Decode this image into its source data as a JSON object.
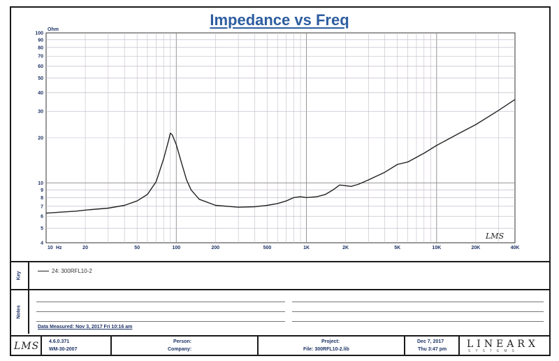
{
  "title": "Impedance vs Freq",
  "chart_data": {
    "type": "line",
    "title": "Impedance vs Freq",
    "ylabel": "Ohm",
    "xlabel": "Hz",
    "x_scale": "log",
    "y_scale": "log",
    "xlim": [
      10,
      40000
    ],
    "ylim": [
      4,
      100
    ],
    "grid": true,
    "y_ticks": [
      {
        "v": 100,
        "label": "100"
      },
      {
        "v": 90,
        "label": "90"
      },
      {
        "v": 80,
        "label": "80"
      },
      {
        "v": 70,
        "label": "70"
      },
      {
        "v": 60,
        "label": "60"
      },
      {
        "v": 50,
        "label": "50"
      },
      {
        "v": 40,
        "label": "40"
      },
      {
        "v": 30,
        "label": "30"
      },
      {
        "v": 20,
        "label": "20"
      },
      {
        "v": 10,
        "label": "10"
      },
      {
        "v": 9,
        "label": "9"
      },
      {
        "v": 8,
        "label": "8"
      },
      {
        "v": 7,
        "label": "7"
      },
      {
        "v": 6,
        "label": "6"
      },
      {
        "v": 5,
        "label": "5"
      },
      {
        "v": 4,
        "label": "4"
      }
    ],
    "x_ticks": [
      {
        "v": 10,
        "label": "10"
      },
      {
        "v": 20,
        "label": "20"
      },
      {
        "v": 50,
        "label": "50"
      },
      {
        "v": 100,
        "label": "100"
      },
      {
        "v": 200,
        "label": "200"
      },
      {
        "v": 500,
        "label": "500"
      },
      {
        "v": 1000,
        "label": "1K"
      },
      {
        "v": 2000,
        "label": "2K"
      },
      {
        "v": 5000,
        "label": "5K"
      },
      {
        "v": 10000,
        "label": "10K"
      },
      {
        "v": 20000,
        "label": "20K"
      },
      {
        "v": 40000,
        "label": "40K"
      }
    ],
    "series": [
      {
        "name": "24: 300RFL10-2",
        "color": "#222222",
        "points": [
          [
            10,
            6.3
          ],
          [
            13,
            6.4
          ],
          [
            17,
            6.5
          ],
          [
            20,
            6.6
          ],
          [
            30,
            6.8
          ],
          [
            40,
            7.1
          ],
          [
            50,
            7.6
          ],
          [
            60,
            8.4
          ],
          [
            70,
            10.2
          ],
          [
            80,
            14.5
          ],
          [
            87,
            19.0
          ],
          [
            90,
            21.5
          ],
          [
            93,
            21.0
          ],
          [
            100,
            18.0
          ],
          [
            110,
            13.5
          ],
          [
            120,
            10.5
          ],
          [
            130,
            9.0
          ],
          [
            150,
            7.8
          ],
          [
            200,
            7.1
          ],
          [
            300,
            6.9
          ],
          [
            400,
            6.95
          ],
          [
            500,
            7.1
          ],
          [
            600,
            7.3
          ],
          [
            700,
            7.6
          ],
          [
            800,
            8.0
          ],
          [
            900,
            8.1
          ],
          [
            1000,
            8.0
          ],
          [
            1200,
            8.1
          ],
          [
            1400,
            8.4
          ],
          [
            1600,
            9.0
          ],
          [
            1800,
            9.7
          ],
          [
            2000,
            9.6
          ],
          [
            2200,
            9.5
          ],
          [
            2500,
            9.8
          ],
          [
            3000,
            10.5
          ],
          [
            4000,
            11.8
          ],
          [
            5000,
            13.3
          ],
          [
            6000,
            13.8
          ],
          [
            8000,
            15.8
          ],
          [
            10000,
            17.8
          ],
          [
            15000,
            21.5
          ],
          [
            20000,
            24.5
          ],
          [
            30000,
            30.5
          ],
          [
            40000,
            36.0
          ]
        ]
      }
    ]
  },
  "axes": {
    "y_unit": "Ohm",
    "x_unit": "Hz",
    "lms_mark": "LMS"
  },
  "legend": {
    "side_label": "Key",
    "entries": [
      "24: 300RFL10-2"
    ]
  },
  "notes": {
    "side_label": "Notes",
    "measured": "Data Measured: Nov 3, 2017 Fri 10:16 am"
  },
  "footer": {
    "logo": "LMS",
    "version": "4.6.0.371",
    "build": "WM-30-2007",
    "person_label": "Person:",
    "company_label": "Company:",
    "project_label": "Project:",
    "file_label": "File: 300RFL10-2.lib",
    "date": "Dec 7, 2017",
    "time": "Thu 3:47 pm",
    "brand": "LINEARX",
    "brand_sub": "SYSTEMS"
  }
}
